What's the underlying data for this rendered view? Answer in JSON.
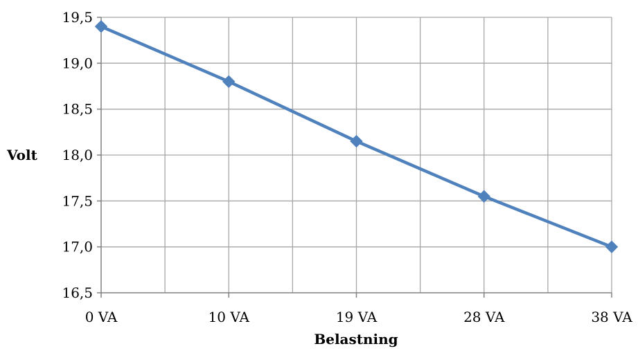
{
  "chart_data": {
    "type": "line",
    "title": "",
    "xlabel": "Belastning",
    "ylabel": "Volt",
    "categories": [
      "0 VA",
      "10 VA",
      "19 VA",
      "28 VA",
      "38 VA"
    ],
    "y_ticks": [
      "16,5",
      "17,0",
      "17,5",
      "18,0",
      "18,5",
      "19,0",
      "19,5"
    ],
    "ylim": [
      16.5,
      19.5
    ],
    "grid": true,
    "legend": "none",
    "series": [
      {
        "values": [
          19.4,
          18.8,
          18.15,
          17.55,
          17.0
        ],
        "color": "#4f81bd",
        "marker": "diamond"
      }
    ]
  }
}
